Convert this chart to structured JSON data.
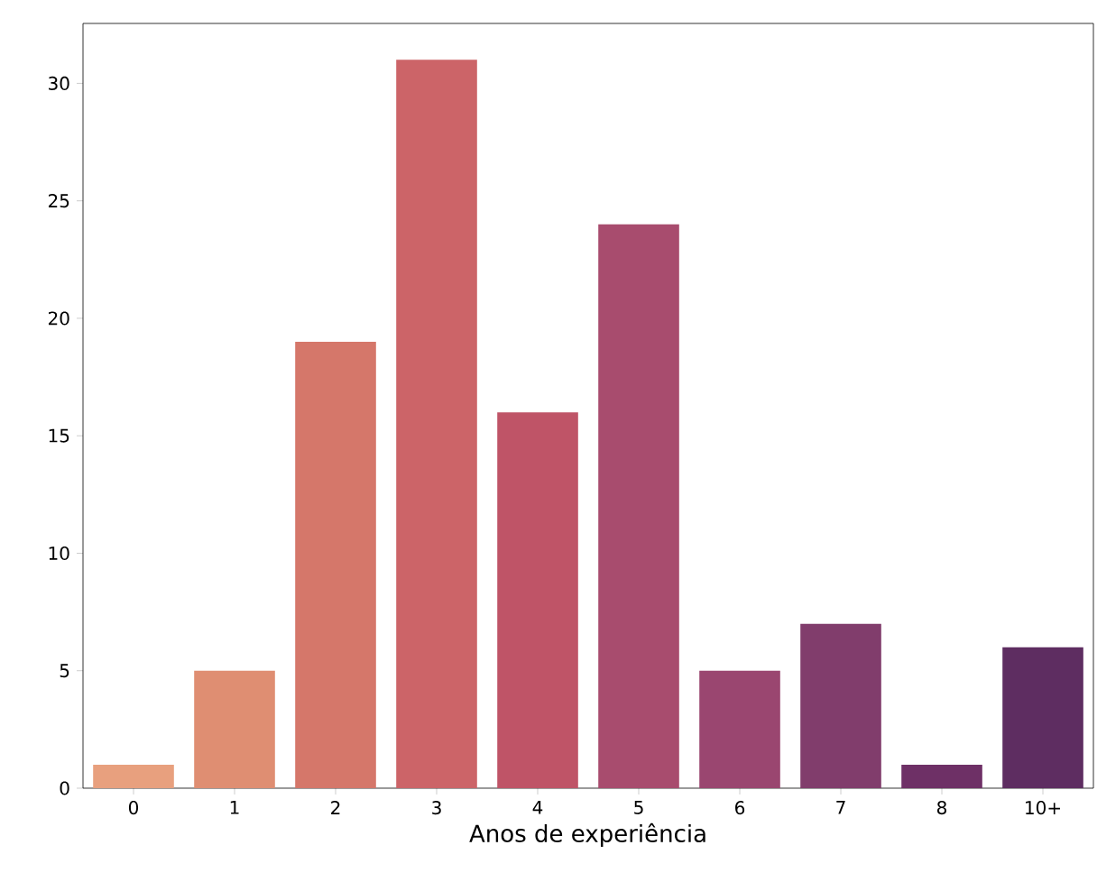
{
  "chart_data": {
    "type": "bar",
    "xlabel": "Anos de experiência",
    "categories": [
      "0",
      "1",
      "2",
      "3",
      "4",
      "5",
      "6",
      "7",
      "8",
      "10+"
    ],
    "values": [
      1,
      5,
      19,
      31,
      16,
      24,
      5,
      7,
      1,
      6
    ],
    "colors": [
      "#e8a07e",
      "#df8e72",
      "#d5776a",
      "#cc6468",
      "#bf5467",
      "#a84c6e",
      "#9a4670",
      "#813d6c",
      "#6e3066",
      "#5e2d61"
    ],
    "ylim": [
      0,
      32.55
    ],
    "yticks": [
      0,
      5,
      10,
      15,
      20,
      25,
      30
    ]
  }
}
